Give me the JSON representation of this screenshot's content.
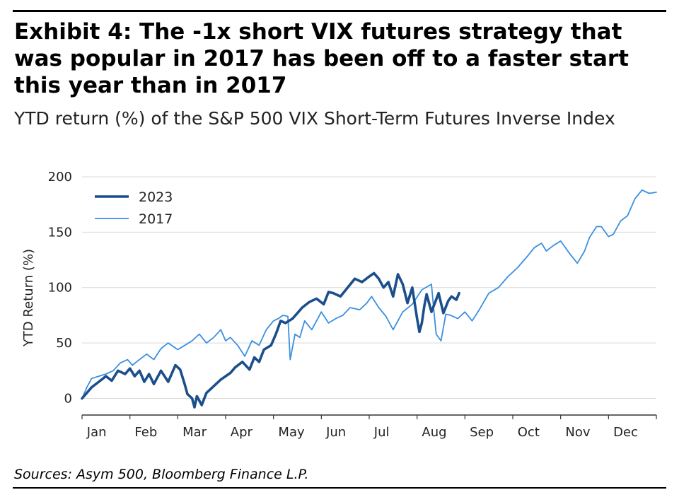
{
  "title": "Exhibit 4: The -1x short VIX futures strategy that was popular in 2017 has been off to a faster start this year than in 2017",
  "subtitle": "YTD return (%) of the S&P 500 VIX Short-Term Futures Inverse Index",
  "source": "Sources: Asym 500, Bloomberg Finance L.P.",
  "colors": {
    "s2023": "#1b4f8c",
    "s2017": "#3b8fe0",
    "grid": "#d9d9d9"
  },
  "chart_data": {
    "type": "line",
    "title": "Exhibit 4: The -1x short VIX futures strategy that was popular in 2017 has been off to a faster start this year than in 2017",
    "xlabel": "",
    "ylabel": "YTD Return (%)",
    "xlim": [
      0,
      12
    ],
    "ylim": [
      -15,
      200
    ],
    "yticks": [
      0,
      50,
      100,
      150,
      200
    ],
    "grid": true,
    "legend": "top-left",
    "months": [
      "Jan",
      "Feb",
      "Mar",
      "Apr",
      "May",
      "Jun",
      "Jul",
      "Aug",
      "Sep",
      "Oct",
      "Nov",
      "Dec"
    ],
    "series": [
      {
        "name": "2023",
        "x": [
          0,
          0.1,
          0.2,
          0.35,
          0.5,
          0.62,
          0.75,
          0.9,
          1.0,
          1.1,
          1.2,
          1.3,
          1.4,
          1.5,
          1.65,
          1.8,
          1.95,
          2.05,
          2.15,
          2.2,
          2.3,
          2.35,
          2.4,
          2.5,
          2.6,
          2.7,
          2.8,
          2.9,
          3.0,
          3.1,
          3.2,
          3.35,
          3.5,
          3.6,
          3.7,
          3.8,
          3.95,
          4.05,
          4.15,
          4.25,
          4.4,
          4.5,
          4.6,
          4.75,
          4.9,
          5.05,
          5.15,
          5.25,
          5.4,
          5.55,
          5.7,
          5.85,
          6.0,
          6.1,
          6.2,
          6.3,
          6.4,
          6.5,
          6.6,
          6.7,
          6.8,
          6.9,
          7.0,
          7.05,
          7.1,
          7.15,
          7.2,
          7.3,
          7.45,
          7.55,
          7.65,
          7.72,
          7.82,
          7.88
        ],
        "values": [
          0,
          5,
          10,
          15,
          20,
          16,
          25,
          22,
          27,
          20,
          25,
          15,
          22,
          13,
          25,
          15,
          30,
          26,
          12,
          4,
          0,
          -8,
          2,
          -6,
          5,
          9,
          13,
          17,
          20,
          23,
          28,
          33,
          26,
          37,
          33,
          44,
          48,
          58,
          70,
          68,
          72,
          77,
          82,
          87,
          90,
          85,
          96,
          95,
          92,
          100,
          108,
          105,
          110,
          113,
          108,
          100,
          105,
          92,
          112,
          103,
          86,
          100,
          72,
          60,
          68,
          83,
          94,
          78,
          95,
          77,
          88,
          92,
          89,
          95
        ]
      },
      {
        "name": "2017",
        "x": [
          0,
          0.1,
          0.2,
          0.35,
          0.5,
          0.65,
          0.8,
          0.95,
          1.05,
          1.2,
          1.35,
          1.5,
          1.65,
          1.8,
          2.0,
          2.15,
          2.3,
          2.45,
          2.6,
          2.75,
          2.9,
          3.0,
          3.1,
          3.25,
          3.4,
          3.55,
          3.7,
          3.85,
          4.0,
          4.1,
          4.2,
          4.3,
          4.35,
          4.45,
          4.55,
          4.65,
          4.8,
          5.0,
          5.15,
          5.3,
          5.45,
          5.6,
          5.8,
          5.95,
          6.05,
          6.2,
          6.35,
          6.5,
          6.7,
          6.9,
          7.1,
          7.3,
          7.35,
          7.4,
          7.5,
          7.6,
          7.7,
          7.85,
          8.0,
          8.15,
          8.3,
          8.5,
          8.7,
          8.9,
          9.1,
          9.3,
          9.45,
          9.6,
          9.7,
          9.85,
          10.0,
          10.2,
          10.35,
          10.5,
          10.6,
          10.75,
          10.85,
          11.0,
          11.1,
          11.25,
          11.4,
          11.55,
          11.7,
          11.85,
          12.0
        ],
        "values": [
          0,
          10,
          18,
          20,
          22,
          25,
          32,
          35,
          30,
          35,
          40,
          35,
          45,
          50,
          44,
          48,
          52,
          58,
          50,
          55,
          62,
          52,
          55,
          48,
          38,
          52,
          48,
          62,
          70,
          72,
          75,
          74,
          35,
          58,
          55,
          70,
          62,
          78,
          68,
          72,
          75,
          82,
          80,
          86,
          92,
          82,
          74,
          62,
          78,
          85,
          98,
          103,
          80,
          58,
          52,
          76,
          75,
          72,
          78,
          70,
          80,
          95,
          100,
          110,
          118,
          128,
          136,
          140,
          133,
          138,
          142,
          130,
          122,
          133,
          145,
          155,
          155,
          146,
          148,
          160,
          165,
          180,
          188,
          185,
          186
        ]
      }
    ]
  }
}
